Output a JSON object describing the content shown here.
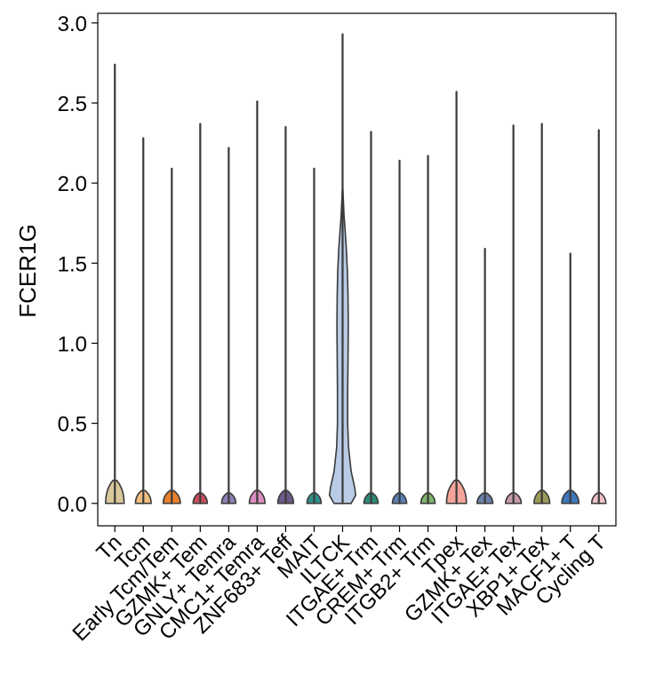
{
  "chart_data": {
    "type": "violin",
    "title": "",
    "xlabel": "",
    "ylabel": "FCER1G",
    "ylim": [
      -0.14,
      3.06
    ],
    "yticks": [
      "0.0",
      "0.5",
      "1.0",
      "1.5",
      "2.0",
      "2.5",
      "3.0"
    ],
    "grid": false,
    "categories": [
      "Tn",
      "Tcm",
      "Early Tcm/Tem",
      "GZMK+ Tem",
      "GNLY+ Temra",
      "CMC1+ Temra",
      "ZNF683+ Teff",
      "MAIT",
      "ILTCK",
      "ITGAE+ Trm",
      "CREM+ Trm",
      "ITGB2+ Trm",
      "Tpex",
      "GZMK+ Tex",
      "ITGAE+ Tex",
      "XBP1+ Tex",
      "MACF1+ T",
      "Cycling T"
    ],
    "max_values": [
      2.74,
      2.28,
      2.09,
      2.37,
      2.22,
      2.51,
      2.35,
      2.09,
      2.93,
      2.32,
      2.14,
      2.17,
      2.57,
      1.59,
      2.36,
      2.37,
      1.56,
      2.33
    ],
    "bulge_heights": [
      0.09,
      0.05,
      0.05,
      0.04,
      0.04,
      0.05,
      0.05,
      0.04,
      0.2,
      0.04,
      0.04,
      0.04,
      0.09,
      0.04,
      0.04,
      0.05,
      0.05,
      0.04
    ],
    "bulge_widths": [
      0.65,
      0.55,
      0.6,
      0.5,
      0.5,
      0.55,
      0.55,
      0.5,
      0.85,
      0.5,
      0.5,
      0.5,
      0.7,
      0.55,
      0.55,
      0.55,
      0.6,
      0.5
    ],
    "colors": [
      "#d9c89a",
      "#f0bd80",
      "#e8802d",
      "#c7505a",
      "#8e7fb2",
      "#d98dbf",
      "#6e5a8a",
      "#2f8f8a",
      "#b9cbe6",
      "#2e8a7a",
      "#5b7fb0",
      "#7fb36a",
      "#f4a49a",
      "#6a7faa",
      "#c99aa8",
      "#9a9a5a",
      "#3f76b8",
      "#f0c0c8"
    ],
    "iltck_density": {
      "y": [
        0.0,
        0.05,
        0.1,
        0.2,
        0.35,
        0.5,
        0.7,
        0.9,
        1.1,
        1.3,
        1.45,
        1.6,
        1.7,
        1.8,
        1.9,
        2.0
      ],
      "w": [
        0.6,
        0.92,
        0.85,
        0.6,
        0.42,
        0.36,
        0.36,
        0.38,
        0.4,
        0.38,
        0.34,
        0.26,
        0.18,
        0.1,
        0.05,
        0.0
      ]
    }
  }
}
